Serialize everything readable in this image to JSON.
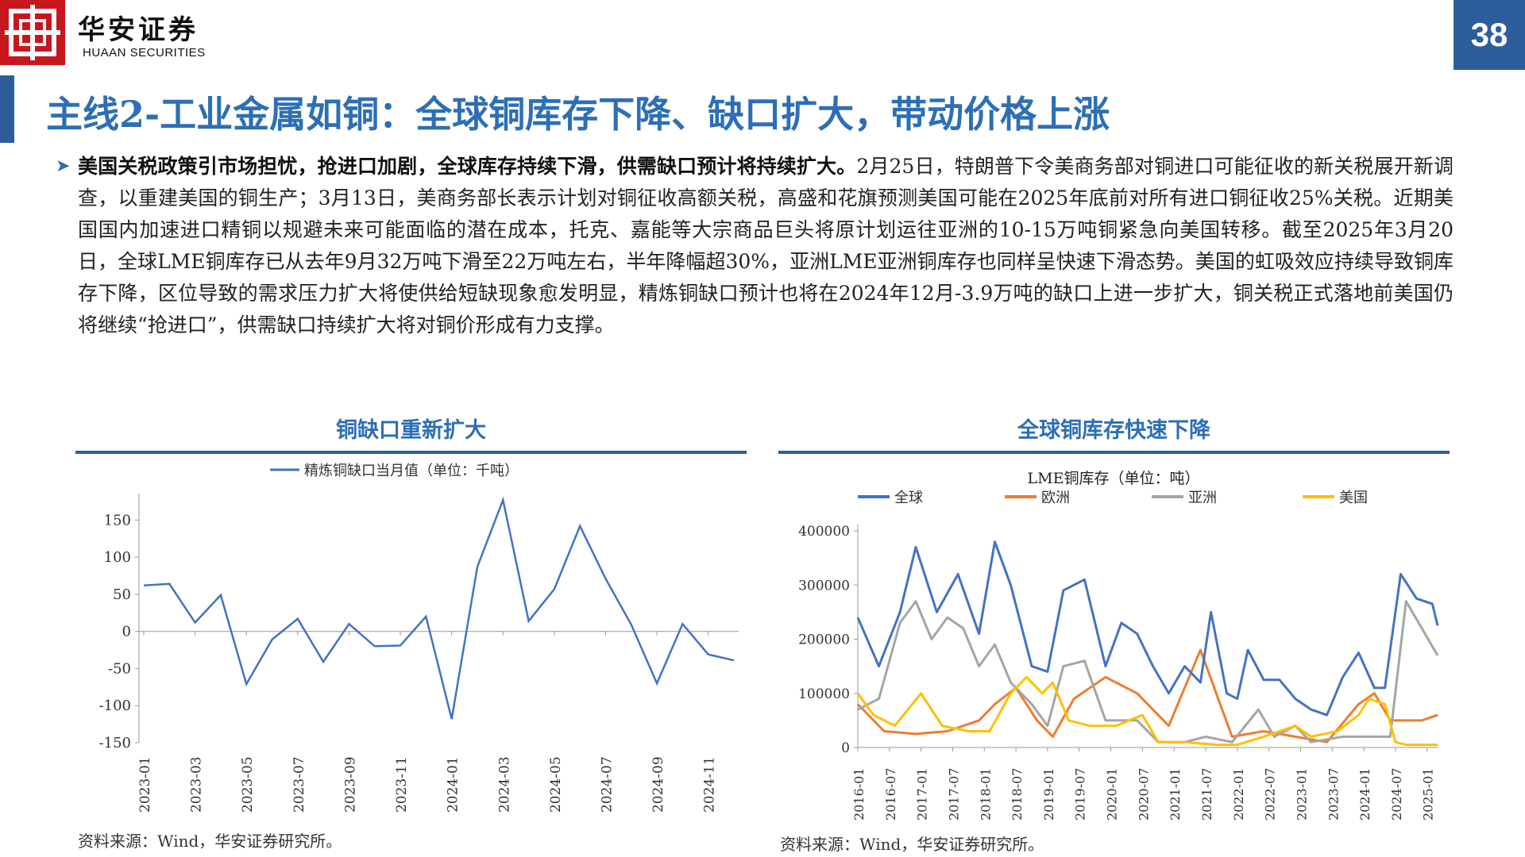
{
  "header": {
    "logo_cn": "华安证券",
    "logo_en": "HUAAN SECURITIES",
    "page_number": "38",
    "brand_color": "#c8161d",
    "accent_color": "#2d5d9b"
  },
  "title": "主线2-工业金属如铜：全球铜库存下降、缺口扩大，带动价格上涨",
  "body": {
    "bullet_icon": "triangle-bullet-icon",
    "lead_bold": "美国关税政策引市场担忧，抢进口加剧，全球库存持续下滑，供需缺口预计将持续扩大。",
    "text": "2月25日，特朗普下令美商务部对铜进口可能征收的新关税展开新调查，以重建美国的铜生产；3月13日，美商务部长表示计划对铜征收高额关税，高盛和花旗预测美国可能在2025年底前对所有进口铜征收25%关税。近期美国国内加速进口精铜以规避未来可能面临的潜在成本，托克、嘉能等大宗商品巨头将原计划运往亚洲的10-15万吨铜紧急向美国转移。截至2025年3月20日，全球LME铜库存已从去年9月32万吨下滑至22万吨左右，半年降幅超30%，亚洲LME亚洲铜库存也同样呈快速下滑态势。美国的虹吸效应持续导致铜库存下降，区位导致的需求压力扩大将使供给短缺现象愈发明显，精炼铜缺口预计也将在2024年12月-3.9万吨的缺口上进一步扩大，铜关税正式落地前美国仍将继续“抢进口”，供需缺口持续扩大将对铜价形成有力支撑。"
  },
  "left_panel": {
    "title": "铜缺口重新扩大",
    "source": "资料来源：Wind，华安证券研究所。"
  },
  "right_panel": {
    "title": "全球铜库存快速下降",
    "source": "资料来源：Wind，华安证券研究所。"
  },
  "chart_data": [
    {
      "type": "line",
      "title": "",
      "legend": "top-center",
      "series": [
        {
          "name": "精炼铜缺口当月值（单位：千吨）",
          "color": "#4472c4",
          "values": [
            62,
            64,
            12,
            49,
            -71,
            -11,
            17,
            -41,
            10,
            -20,
            -19,
            20,
            -118,
            87,
            177,
            14,
            57,
            142,
            71,
            9,
            -70,
            10,
            -31,
            -39
          ]
        }
      ],
      "categories": [
        "2023-01",
        "2023-02",
        "2023-03",
        "2023-04",
        "2023-05",
        "2023-06",
        "2023-07",
        "2023-08",
        "2023-09",
        "2023-10",
        "2023-11",
        "2023-12",
        "2024-01",
        "2024-02",
        "2024-03",
        "2024-04",
        "2024-05",
        "2024-06",
        "2024-07",
        "2024-08",
        "2024-09",
        "2024-10",
        "2024-11",
        "2024-12"
      ],
      "tick_labels": [
        "2023-01",
        "2023-03",
        "2023-05",
        "2023-07",
        "2023-09",
        "2023-11",
        "2024-01",
        "2024-03",
        "2024-05",
        "2024-07",
        "2024-09",
        "2024-11"
      ],
      "y_ticks": [
        "150",
        "100",
        "50",
        "0",
        "-50",
        "-100",
        "-150"
      ],
      "ylim": [
        -150,
        175
      ]
    },
    {
      "type": "line",
      "title": "LME铜库存（单位：吨）",
      "legend": "top",
      "tick_labels": [
        "2016-01",
        "2016-07",
        "2017-01",
        "2017-07",
        "2018-01",
        "2018-07",
        "2019-01",
        "2019-07",
        "2020-01",
        "2020-07",
        "2021-01",
        "2021-07",
        "2022-01",
        "2022-07",
        "2023-01",
        "2023-07",
        "2024-01",
        "2024-07",
        "2025-01"
      ],
      "y_ticks": [
        "400000",
        "300000",
        "200000",
        "100000",
        "0"
      ],
      "ylim": [
        0,
        400000
      ],
      "x_range": [
        "2016-01",
        "2025-03"
      ],
      "series": [
        {
          "name": "全球",
          "color": "#4472c4",
          "points": [
            [
              "2016-01",
              240000
            ],
            [
              "2016-05",
              150000
            ],
            [
              "2016-09",
              250000
            ],
            [
              "2016-12",
              370000
            ],
            [
              "2017-04",
              250000
            ],
            [
              "2017-08",
              320000
            ],
            [
              "2017-12",
              210000
            ],
            [
              "2018-03",
              380000
            ],
            [
              "2018-06",
              300000
            ],
            [
              "2018-10",
              150000
            ],
            [
              "2019-01",
              140000
            ],
            [
              "2019-04",
              290000
            ],
            [
              "2019-08",
              310000
            ],
            [
              "2019-12",
              150000
            ],
            [
              "2020-03",
              230000
            ],
            [
              "2020-06",
              210000
            ],
            [
              "2020-09",
              150000
            ],
            [
              "2020-12",
              100000
            ],
            [
              "2021-03",
              150000
            ],
            [
              "2021-06",
              120000
            ],
            [
              "2021-08",
              250000
            ],
            [
              "2021-11",
              100000
            ],
            [
              "2022-01",
              90000
            ],
            [
              "2022-03",
              180000
            ],
            [
              "2022-06",
              125000
            ],
            [
              "2022-09",
              125000
            ],
            [
              "2022-12",
              90000
            ],
            [
              "2023-03",
              70000
            ],
            [
              "2023-06",
              60000
            ],
            [
              "2023-09",
              130000
            ],
            [
              "2023-12",
              175000
            ],
            [
              "2024-03",
              110000
            ],
            [
              "2024-05",
              110000
            ],
            [
              "2024-08",
              320000
            ],
            [
              "2024-11",
              275000
            ],
            [
              "2025-02",
              265000
            ],
            [
              "2025-03",
              225000
            ]
          ]
        },
        {
          "name": "欧洲",
          "color": "#ed7d31",
          "points": [
            [
              "2016-01",
              80000
            ],
            [
              "2016-06",
              30000
            ],
            [
              "2016-12",
              25000
            ],
            [
              "2017-06",
              30000
            ],
            [
              "2017-12",
              50000
            ],
            [
              "2018-03",
              80000
            ],
            [
              "2018-07",
              110000
            ],
            [
              "2018-11",
              50000
            ],
            [
              "2019-02",
              20000
            ],
            [
              "2019-06",
              90000
            ],
            [
              "2019-12",
              130000
            ],
            [
              "2020-06",
              100000
            ],
            [
              "2020-12",
              40000
            ],
            [
              "2021-06",
              180000
            ],
            [
              "2021-09",
              100000
            ],
            [
              "2021-12",
              20000
            ],
            [
              "2022-06",
              30000
            ],
            [
              "2022-12",
              20000
            ],
            [
              "2023-06",
              10000
            ],
            [
              "2023-12",
              80000
            ],
            [
              "2024-03",
              100000
            ],
            [
              "2024-06",
              50000
            ],
            [
              "2024-12",
              50000
            ],
            [
              "2025-03",
              60000
            ]
          ]
        },
        {
          "name": "亚洲",
          "color": "#a5a5a5",
          "points": [
            [
              "2016-01",
              70000
            ],
            [
              "2016-05",
              90000
            ],
            [
              "2016-09",
              230000
            ],
            [
              "2016-12",
              270000
            ],
            [
              "2017-03",
              200000
            ],
            [
              "2017-06",
              240000
            ],
            [
              "2017-09",
              220000
            ],
            [
              "2017-12",
              150000
            ],
            [
              "2018-03",
              190000
            ],
            [
              "2018-06",
              120000
            ],
            [
              "2018-10",
              80000
            ],
            [
              "2019-01",
              40000
            ],
            [
              "2019-04",
              150000
            ],
            [
              "2019-08",
              160000
            ],
            [
              "2019-12",
              50000
            ],
            [
              "2020-06",
              50000
            ],
            [
              "2020-10",
              10000
            ],
            [
              "2021-03",
              10000
            ],
            [
              "2021-07",
              20000
            ],
            [
              "2021-12",
              10000
            ],
            [
              "2022-05",
              70000
            ],
            [
              "2022-08",
              20000
            ],
            [
              "2022-12",
              40000
            ],
            [
              "2023-03",
              10000
            ],
            [
              "2023-09",
              20000
            ],
            [
              "2023-12",
              20000
            ],
            [
              "2024-06",
              20000
            ],
            [
              "2024-09",
              270000
            ],
            [
              "2024-12",
              220000
            ],
            [
              "2025-03",
              170000
            ]
          ]
        },
        {
          "name": "美国",
          "color": "#ffc000",
          "points": [
            [
              "2016-01",
              100000
            ],
            [
              "2016-04",
              60000
            ],
            [
              "2016-08",
              40000
            ],
            [
              "2017-01",
              100000
            ],
            [
              "2017-05",
              40000
            ],
            [
              "2017-10",
              30000
            ],
            [
              "2018-02",
              30000
            ],
            [
              "2018-06",
              100000
            ],
            [
              "2018-09",
              130000
            ],
            [
              "2018-12",
              100000
            ],
            [
              "2019-02",
              120000
            ],
            [
              "2019-05",
              50000
            ],
            [
              "2019-09",
              40000
            ],
            [
              "2020-02",
              40000
            ],
            [
              "2020-07",
              60000
            ],
            [
              "2020-10",
              10000
            ],
            [
              "2021-03",
              10000
            ],
            [
              "2021-09",
              5000
            ],
            [
              "2022-01",
              5000
            ],
            [
              "2022-06",
              20000
            ],
            [
              "2022-09",
              30000
            ],
            [
              "2022-12",
              40000
            ],
            [
              "2023-03",
              20000
            ],
            [
              "2023-08",
              30000
            ],
            [
              "2023-12",
              60000
            ],
            [
              "2024-02",
              90000
            ],
            [
              "2024-05",
              80000
            ],
            [
              "2024-07",
              10000
            ],
            [
              "2024-09",
              5000
            ],
            [
              "2025-03",
              5000
            ]
          ]
        }
      ]
    }
  ]
}
